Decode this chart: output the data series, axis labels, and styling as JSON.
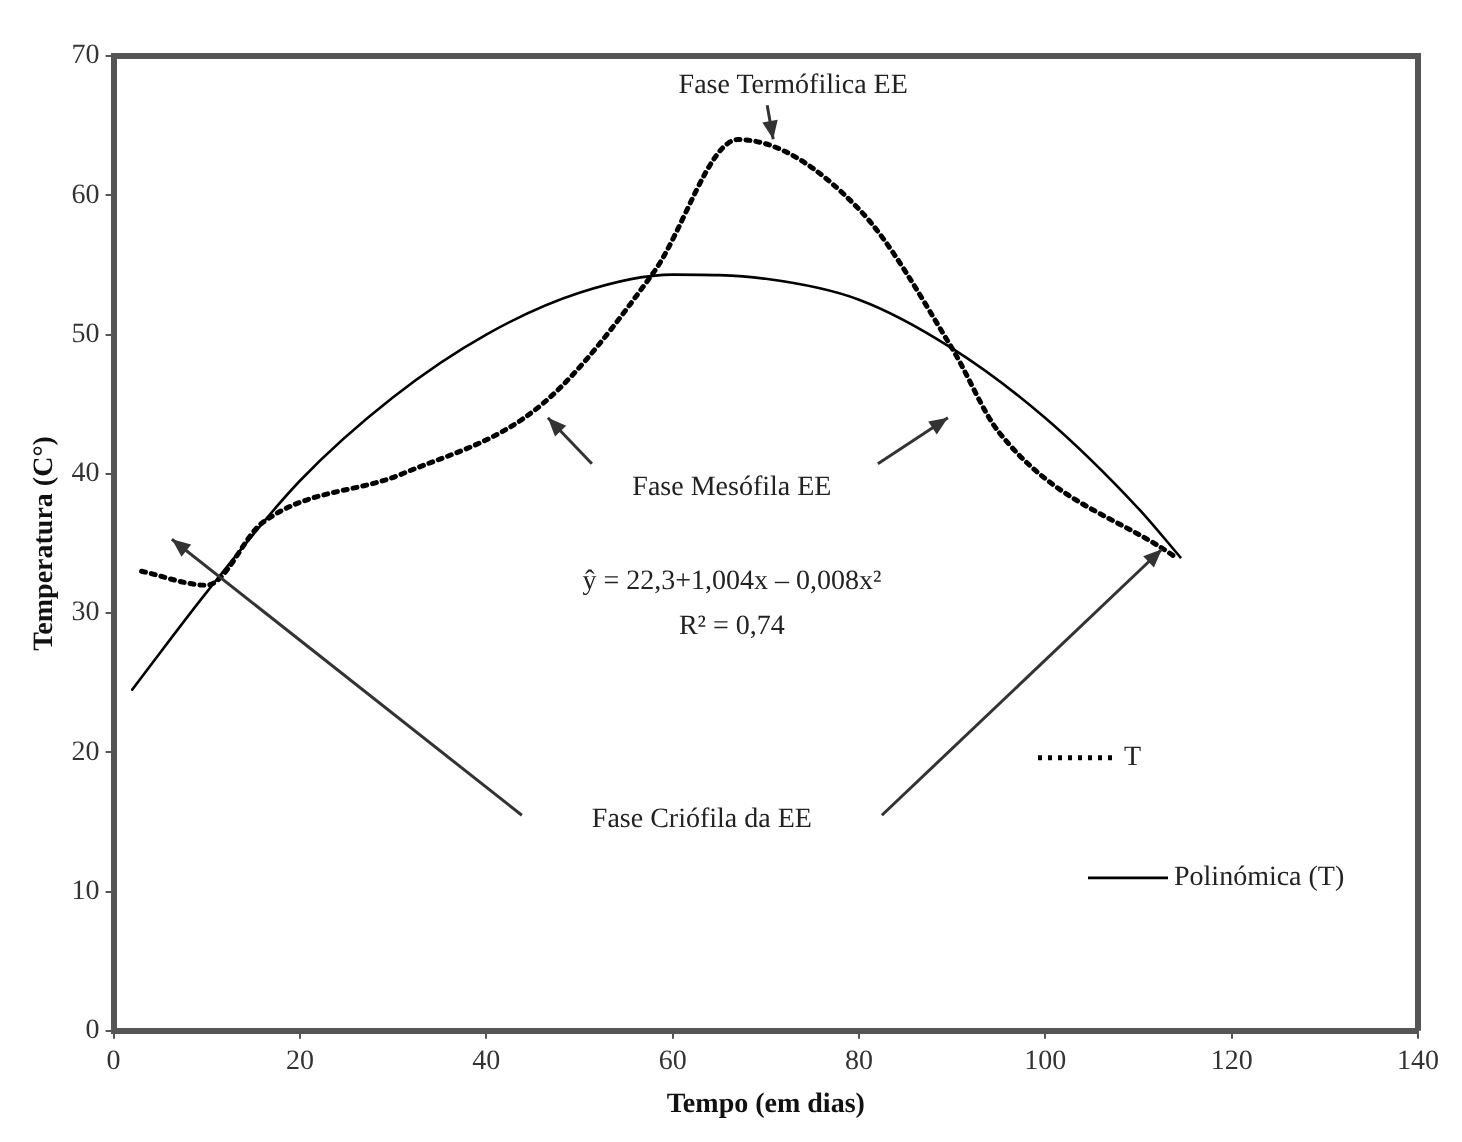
{
  "chart_data": {
    "type": "line",
    "xlabel": "Tempo (em dias)",
    "ylabel": "Temperatura (C°)",
    "series": [
      {
        "name": "T",
        "color": "#000000",
        "line_style": "dotted",
        "x": [
          3,
          10,
          16,
          31,
          46,
          58,
          67,
          80,
          90,
          95,
          114
        ],
        "values": [
          33,
          32,
          36.5,
          40,
          45,
          54.5,
          64,
          59,
          49,
          43,
          34
        ]
      },
      {
        "name": "Polinómica (T)",
        "color": "#000000",
        "line_style": "solid",
        "x": [
          2,
          10,
          20,
          30,
          40,
          50,
          60,
          70,
          80,
          90,
          100,
          110,
          114.5
        ],
        "values": [
          24.5,
          31.5,
          39.5,
          45.5,
          50,
          53,
          54.3,
          54,
          52.5,
          49,
          44,
          37.5,
          34
        ]
      }
    ],
    "marker": "none",
    "xlim": [
      0,
      140
    ],
    "xticks": [
      0,
      20,
      40,
      60,
      80,
      100,
      120,
      140
    ],
    "ylim": [
      0,
      70
    ],
    "yticks": [
      0,
      10,
      20,
      30,
      40,
      50,
      60,
      70
    ],
    "grid": false,
    "legend": "right",
    "annotations": [
      "Fase Termófilica EE",
      "Fase Mesófila EE",
      "ŷ = 22,3+1,004x – 0,008x²",
      "R² = 0,74",
      "Fase Criófila da EE"
    ]
  }
}
